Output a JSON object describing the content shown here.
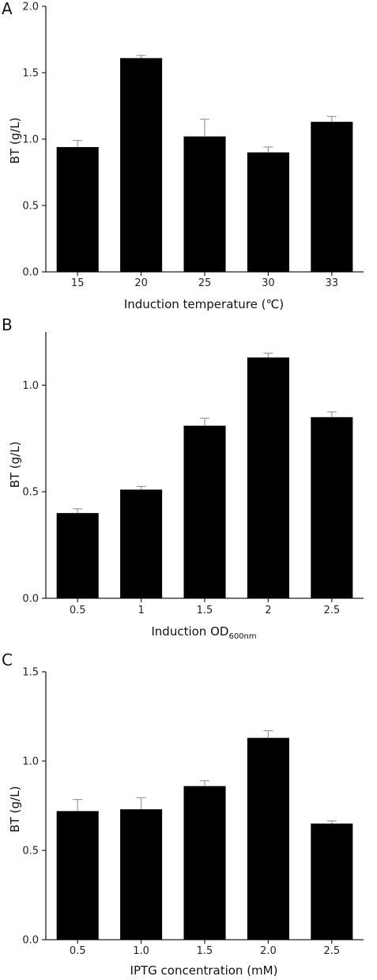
{
  "chart_data": [
    {
      "type": "bar",
      "panel_label": "A",
      "title": "",
      "xlabel": "Induction temperature (℃)",
      "ylabel": "BT (g/L)",
      "categories": [
        "15",
        "20",
        "25",
        "30",
        "33"
      ],
      "values": [
        0.94,
        1.61,
        1.02,
        0.9,
        1.13
      ],
      "errors": [
        0.05,
        0.02,
        0.13,
        0.04,
        0.04
      ],
      "ylim": [
        0,
        2.0
      ],
      "yticks": [
        0.0,
        0.5,
        1.0,
        1.5,
        2.0
      ],
      "ytick_labels": [
        "0.0",
        "0.5",
        "1.0",
        "1.5",
        "2.0"
      ],
      "grid": false,
      "legend": "none"
    },
    {
      "type": "bar",
      "panel_label": "B",
      "title": "",
      "xlabel": "Induction OD",
      "xlabel_subscript": "600nm",
      "ylabel": "BT (g/L)",
      "categories": [
        "0.5",
        "1",
        "1.5",
        "2",
        "2.5"
      ],
      "values": [
        0.4,
        0.51,
        0.81,
        1.13,
        0.85
      ],
      "errors": [
        0.02,
        0.015,
        0.035,
        0.02,
        0.025
      ],
      "ylim": [
        0,
        1.25
      ],
      "yticks": [
        0.0,
        0.5,
        1.0
      ],
      "ytick_labels": [
        "0.0",
        "0.5",
        "1.0"
      ],
      "grid": false,
      "legend": "none"
    },
    {
      "type": "bar",
      "panel_label": "C",
      "title": "",
      "xlabel": "IPTG concentration (mM)",
      "ylabel": "BT (g/L)",
      "categories": [
        "0.5",
        "1.0",
        "1.5",
        "2.0",
        "2.5"
      ],
      "values": [
        0.72,
        0.73,
        0.86,
        1.13,
        0.65
      ],
      "errors": [
        0.065,
        0.065,
        0.03,
        0.04,
        0.015
      ],
      "ylim": [
        0,
        1.5
      ],
      "yticks": [
        0.0,
        0.5,
        1.0,
        1.5
      ],
      "ytick_labels": [
        "0.0",
        "0.5",
        "1.0",
        "1.5"
      ],
      "grid": false,
      "legend": "none"
    }
  ]
}
